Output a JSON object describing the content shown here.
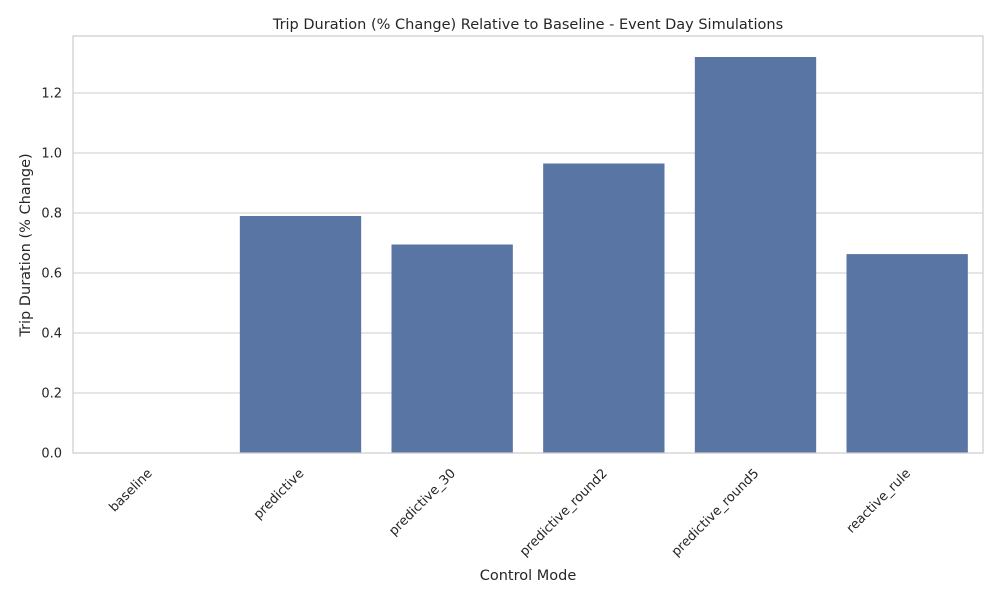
{
  "chart_data": {
    "type": "bar",
    "title": "Trip Duration (% Change) Relative to Baseline - Event Day Simulations",
    "xlabel": "Control Mode",
    "ylabel": "Trip Duration (% Change)",
    "categories": [
      "baseline",
      "predictive",
      "predictive_30",
      "predictive_round2",
      "predictive_round5",
      "reactive_rule"
    ],
    "values": [
      0.0,
      0.79,
      0.695,
      0.965,
      1.32,
      0.663
    ],
    "ylim": [
      0,
      1.39
    ],
    "yticks": [
      "0.0",
      "0.2",
      "0.4",
      "0.6",
      "0.8",
      "1.0",
      "1.2"
    ],
    "grid": true,
    "bar_color": "#5875a4"
  }
}
